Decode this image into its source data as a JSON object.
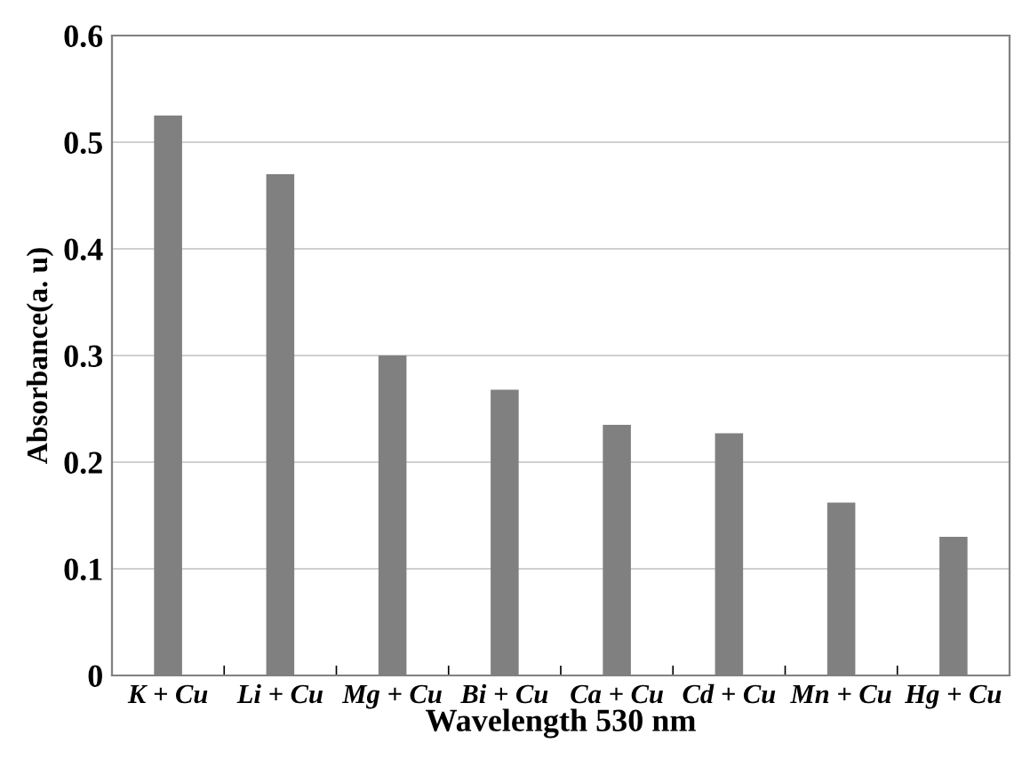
{
  "chart_data": {
    "type": "bar",
    "xlabel": "Wavelength 530 nm",
    "ylabel": "Absorbance(a. u)",
    "categories": [
      "K + Cu",
      "Li + Cu",
      "Mg + Cu",
      "Bi + Cu",
      "Ca + Cu",
      "Cd + Cu",
      "Mn + Cu",
      "Hg + Cu"
    ],
    "values": [
      0.525,
      0.47,
      0.3,
      0.268,
      0.235,
      0.227,
      0.162,
      0.13
    ],
    "color": "#808080",
    "ylim": [
      0,
      0.6
    ],
    "yticks": [
      0,
      0.1,
      0.2,
      0.3,
      0.4,
      0.5,
      0.6
    ],
    "grid": "y"
  }
}
